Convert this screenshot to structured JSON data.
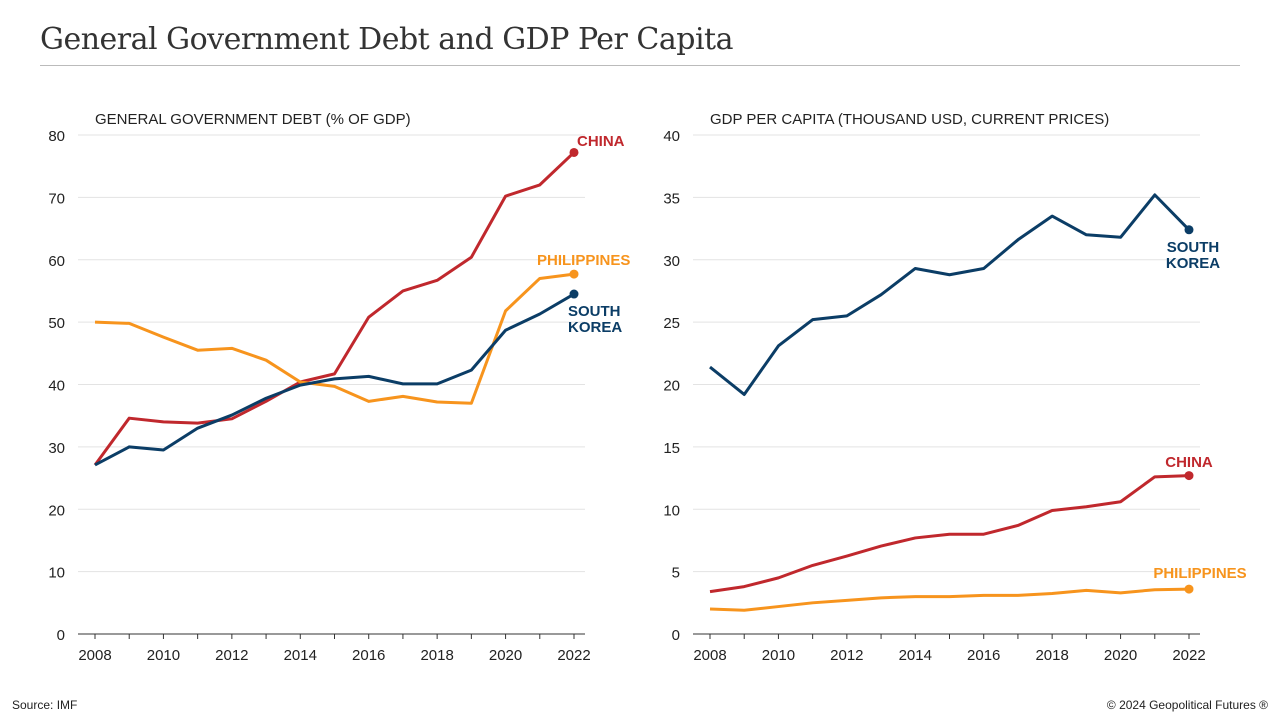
{
  "title": "General Government Debt and GDP Per Capita",
  "source": "Source: IMF",
  "copyright": "© 2024 Geopolitical Futures ®",
  "colors": {
    "China": "#c0282d",
    "South Korea": "#0b3d66",
    "Philippines": "#f7941d"
  },
  "chart_data": [
    {
      "type": "line",
      "title": "GENERAL GOVERNMENT DEBT (% OF GDP)",
      "x": [
        2008,
        2009,
        2010,
        2011,
        2012,
        2013,
        2014,
        2015,
        2016,
        2017,
        2018,
        2019,
        2020,
        2021,
        2022
      ],
      "xticks": [
        "2008",
        "2010",
        "2012",
        "2014",
        "2016",
        "2018",
        "2020",
        "2022"
      ],
      "yticks": [
        "0",
        "10",
        "20",
        "30",
        "40",
        "50",
        "60",
        "70",
        "80"
      ],
      "ylim": [
        0,
        80
      ],
      "series": [
        {
          "name": "China",
          "label": [
            "CHINA"
          ],
          "values": [
            27.1,
            34.6,
            34.0,
            33.8,
            34.5,
            37.3,
            40.4,
            41.7,
            50.8,
            55.0,
            56.7,
            60.4,
            70.2,
            72.0,
            77.2
          ]
        },
        {
          "name": "Philippines",
          "label": [
            "PHILIPPINES"
          ],
          "values": [
            50.0,
            49.8,
            47.6,
            45.5,
            45.8,
            43.9,
            40.4,
            39.7,
            37.3,
            38.1,
            37.2,
            37.0,
            51.8,
            57.0,
            57.7
          ]
        },
        {
          "name": "South Korea",
          "label": [
            "SOUTH",
            "KOREA"
          ],
          "values": [
            27.1,
            30.0,
            29.5,
            33.0,
            35.1,
            37.8,
            39.9,
            40.9,
            41.3,
            40.1,
            40.1,
            42.3,
            48.7,
            51.3,
            54.5
          ]
        }
      ]
    },
    {
      "type": "line",
      "title": "GDP PER CAPITA (THOUSAND USD, CURRENT PRICES)",
      "x": [
        2008,
        2009,
        2010,
        2011,
        2012,
        2013,
        2014,
        2015,
        2016,
        2017,
        2018,
        2019,
        2020,
        2021,
        2022
      ],
      "xticks": [
        "2008",
        "2010",
        "2012",
        "2014",
        "2016",
        "2018",
        "2020",
        "2022"
      ],
      "yticks": [
        "0",
        "5",
        "10",
        "15",
        "20",
        "25",
        "30",
        "35",
        "40"
      ],
      "ylim": [
        0,
        40
      ],
      "series": [
        {
          "name": "South Korea",
          "label": [
            "SOUTH",
            "KOREA"
          ],
          "values": [
            21.4,
            19.2,
            23.1,
            25.2,
            25.5,
            27.2,
            29.3,
            28.8,
            29.3,
            31.6,
            33.5,
            32.0,
            31.8,
            35.2,
            32.4
          ]
        },
        {
          "name": "China",
          "label": [
            "CHINA"
          ],
          "values": [
            3.4,
            3.8,
            4.5,
            5.5,
            6.25,
            7.05,
            7.7,
            8.0,
            8.0,
            8.7,
            9.9,
            10.2,
            10.6,
            12.6,
            12.7
          ]
        },
        {
          "name": "Philippines",
          "label": [
            "PHILIPPINES"
          ],
          "values": [
            2.0,
            1.9,
            2.2,
            2.5,
            2.7,
            2.9,
            3.0,
            3.0,
            3.1,
            3.1,
            3.25,
            3.5,
            3.3,
            3.55,
            3.6
          ]
        }
      ]
    }
  ]
}
